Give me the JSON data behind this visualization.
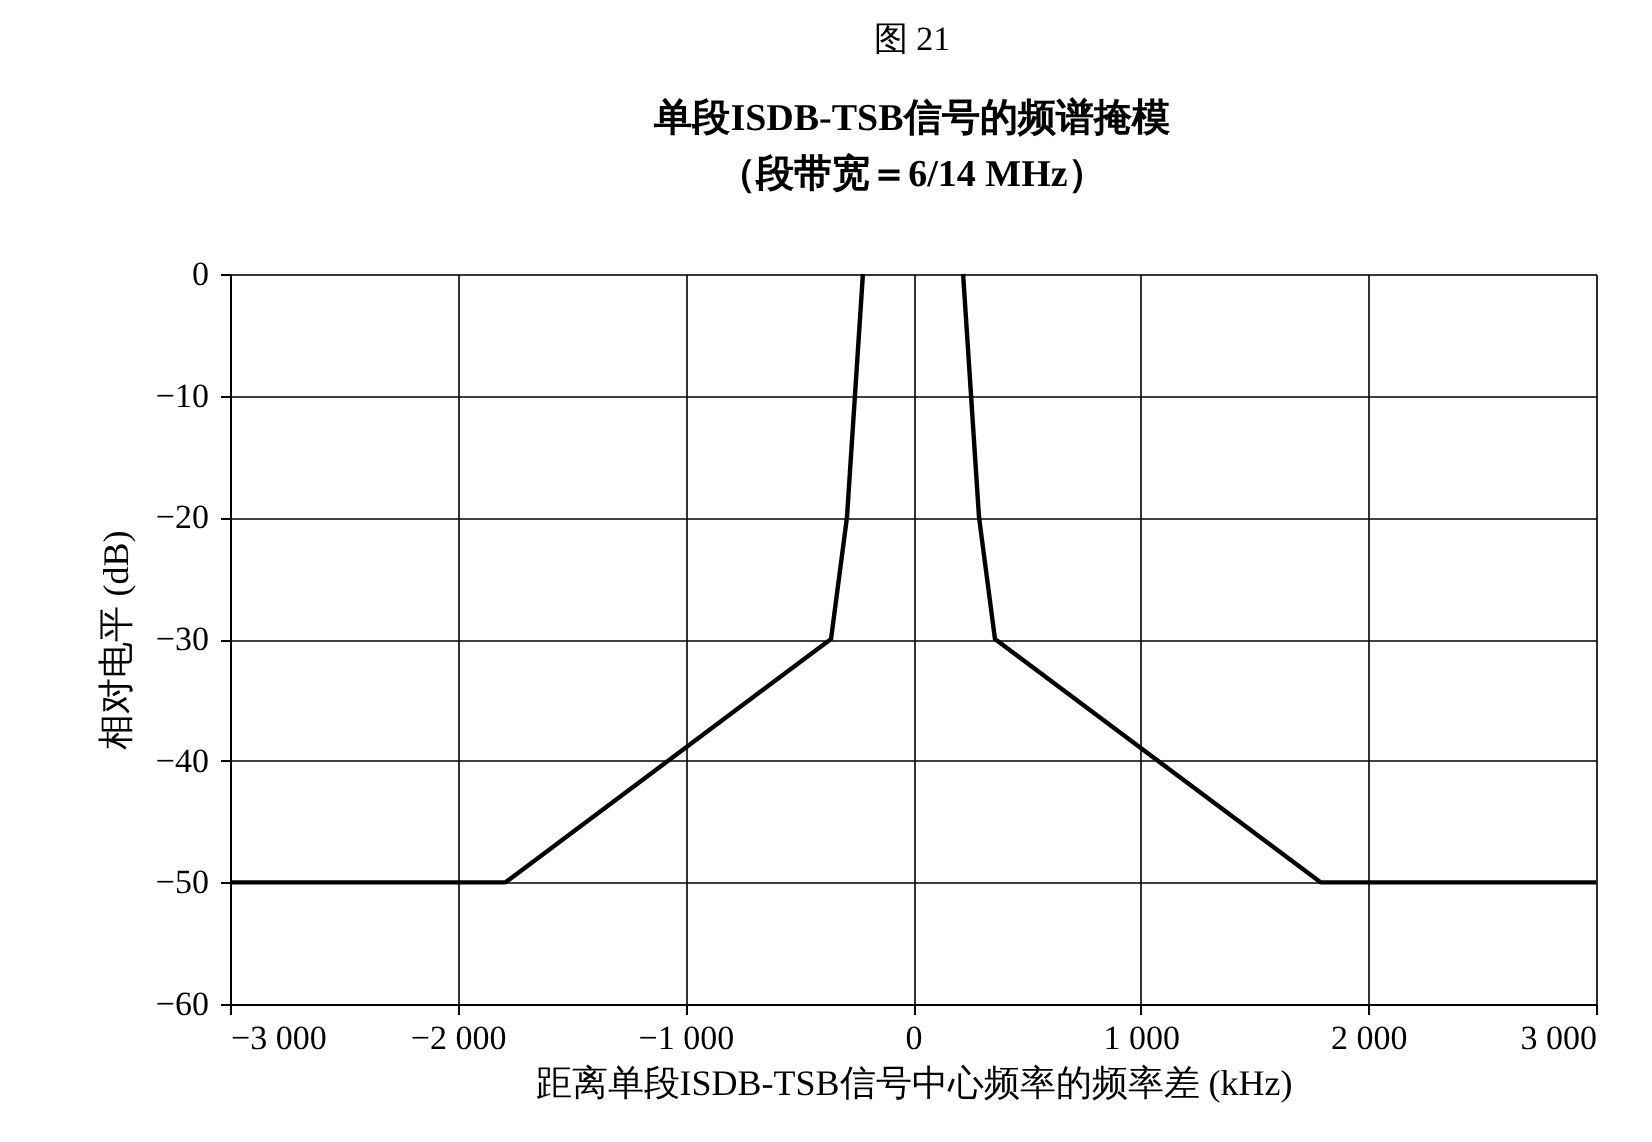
{
  "chart_data": {
    "type": "line",
    "title": "单段ISDB-TSB信号的频谱掩模",
    "subtitle": "（段带宽＝6/14 MHz）",
    "annotations": [
      "图 21"
    ],
    "xlabel": "距离单段ISDB-TSB信号中心频率的频率差 (kHz)",
    "ylabel": "相对电平 (dB)",
    "series": [
      {
        "color": "#000000",
        "x": [
          -3000,
          -1790,
          -360,
          -290,
          -220,
          0,
          220,
          290,
          360,
          1790,
          3000
        ],
        "values": [
          -50,
          -50,
          -30,
          -20,
          0,
          null,
          0,
          -20,
          -30,
          -50,
          -50
        ]
      }
    ],
    "xlim": [
      -3000,
      3000
    ],
    "ylim": [
      -60,
      0
    ],
    "xticks": [
      {
        "value": -3000,
        "label": "−3 000"
      },
      {
        "value": -2000,
        "label": "−2 000"
      },
      {
        "value": -1000,
        "label": "−1 000"
      },
      0,
      {
        "value": 1000,
        "label": "1 000"
      },
      {
        "value": 2000,
        "label": "2 000"
      },
      {
        "value": 3000,
        "label": "3 000"
      }
    ],
    "yticks": [
      {
        "value": -60,
        "label": "−60"
      },
      {
        "value": -50,
        "label": "−50"
      },
      {
        "value": -40,
        "label": "−40"
      },
      {
        "value": -30,
        "label": "−30"
      },
      {
        "value": -20,
        "label": "−20"
      },
      {
        "value": -10,
        "label": "−10"
      },
      0
    ],
    "grid": true,
    "marker": "none",
    "line_style": "solid"
  }
}
